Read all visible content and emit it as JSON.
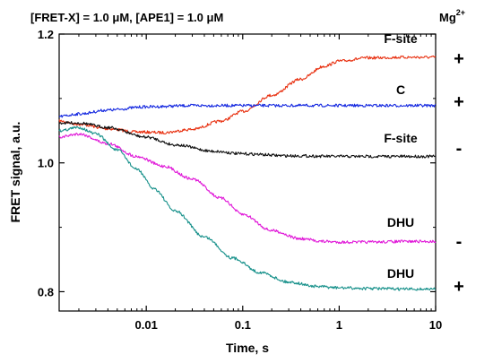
{
  "chart_data": {
    "type": "line",
    "title": "[FRET-X] = 1.0 μM, [APE1] = 1.0 μM",
    "xlabel": "Time, s",
    "ylabel": "FRET signal, a.u.",
    "xscale": "log",
    "xlim": [
      0.00125,
      10
    ],
    "ylim": [
      0.77,
      1.2
    ],
    "xticks": [
      {
        "value": 0.01,
        "label": "0.01"
      },
      {
        "value": 0.1,
        "label": "0.1"
      },
      {
        "value": 1,
        "label": "1"
      },
      {
        "value": 10,
        "label": "10"
      }
    ],
    "yticks": [
      {
        "value": 0.8,
        "label": "0.8"
      },
      {
        "value": 1.0,
        "label": "1.0"
      },
      {
        "value": 1.2,
        "label": "1.2"
      }
    ],
    "legend_header": {
      "base": "Mg",
      "sup": "2+"
    },
    "series": [
      {
        "name": "F-site",
        "mg": "+",
        "color": "#e83010",
        "x": [
          0.00125,
          0.002,
          0.004,
          0.008,
          0.015,
          0.03,
          0.06,
          0.1,
          0.2,
          0.4,
          0.7,
          1,
          2,
          5,
          10
        ],
        "y": [
          1.065,
          1.06,
          1.053,
          1.048,
          1.047,
          1.052,
          1.065,
          1.08,
          1.105,
          1.13,
          1.15,
          1.158,
          1.163,
          1.164,
          1.164
        ]
      },
      {
        "name": "C",
        "mg": "+",
        "color": "#1428e0",
        "x": [
          0.00125,
          0.002,
          0.004,
          0.01,
          0.03,
          0.1,
          1,
          10
        ],
        "y": [
          1.072,
          1.076,
          1.082,
          1.087,
          1.089,
          1.089,
          1.089,
          1.089
        ]
      },
      {
        "name": "F-site",
        "mg": "-",
        "color": "#101010",
        "x": [
          0.00125,
          0.002,
          0.004,
          0.01,
          0.02,
          0.05,
          0.1,
          0.3,
          1,
          3,
          10
        ],
        "y": [
          1.062,
          1.062,
          1.055,
          1.04,
          1.028,
          1.018,
          1.014,
          1.011,
          1.01,
          1.01,
          1.01
        ]
      },
      {
        "name": "DHU",
        "mg": "-",
        "color": "#e018d8",
        "x": [
          0.00125,
          0.002,
          0.004,
          0.008,
          0.015,
          0.03,
          0.06,
          0.1,
          0.2,
          0.4,
          0.7,
          1,
          2,
          5,
          10
        ],
        "y": [
          1.04,
          1.045,
          1.03,
          1.01,
          0.995,
          0.975,
          0.945,
          0.92,
          0.895,
          0.882,
          0.878,
          0.877,
          0.877,
          0.878,
          0.878
        ]
      },
      {
        "name": "DHU",
        "mg": "+",
        "color": "#16908a",
        "x": [
          0.00125,
          0.002,
          0.003,
          0.005,
          0.008,
          0.012,
          0.02,
          0.04,
          0.08,
          0.15,
          0.3,
          0.6,
          1,
          2,
          5,
          10
        ],
        "y": [
          1.05,
          1.055,
          1.045,
          1.02,
          0.99,
          0.96,
          0.925,
          0.885,
          0.852,
          0.83,
          0.815,
          0.808,
          0.806,
          0.805,
          0.804,
          0.804
        ]
      }
    ]
  }
}
